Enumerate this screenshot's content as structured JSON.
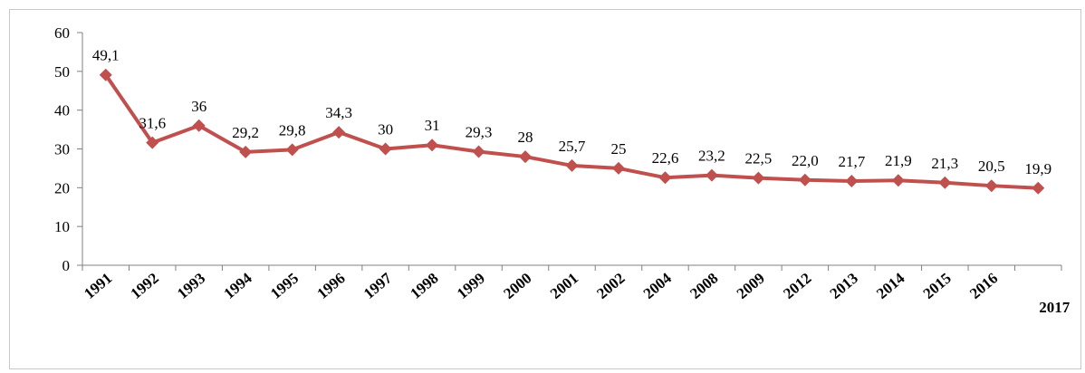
{
  "chart_data": {
    "type": "line",
    "categories": [
      "1991",
      "1992",
      "1993",
      "1994",
      "1995",
      "1996",
      "1997",
      "1998",
      "1999",
      "2000",
      "2001",
      "2002",
      "2004",
      "2008",
      "2009",
      "2012",
      "2013",
      "2014",
      "2015",
      "2016",
      "2017"
    ],
    "values": [
      49.1,
      31.6,
      36,
      29.2,
      29.8,
      34.3,
      30,
      31,
      29.3,
      28,
      25.7,
      25,
      22.6,
      23.2,
      22.5,
      22.0,
      21.7,
      21.9,
      21.3,
      20.5,
      19.9
    ],
    "data_labels": [
      "49,1",
      "31,6",
      "36",
      "29,2",
      "29,8",
      "34,3",
      "30",
      "31",
      "29,3",
      "28",
      "25,7",
      "25",
      "22,6",
      "23,2",
      "22,5",
      "22,0",
      "21,7",
      "21,9",
      "21,3",
      "20,5",
      "19,9"
    ],
    "ylim": [
      0,
      60
    ],
    "yticks": [
      0,
      10,
      20,
      30,
      40,
      50,
      60
    ],
    "grid": false,
    "legend": "none",
    "series_color": "#c0504d",
    "title": "",
    "xlabel": "",
    "ylabel": ""
  }
}
